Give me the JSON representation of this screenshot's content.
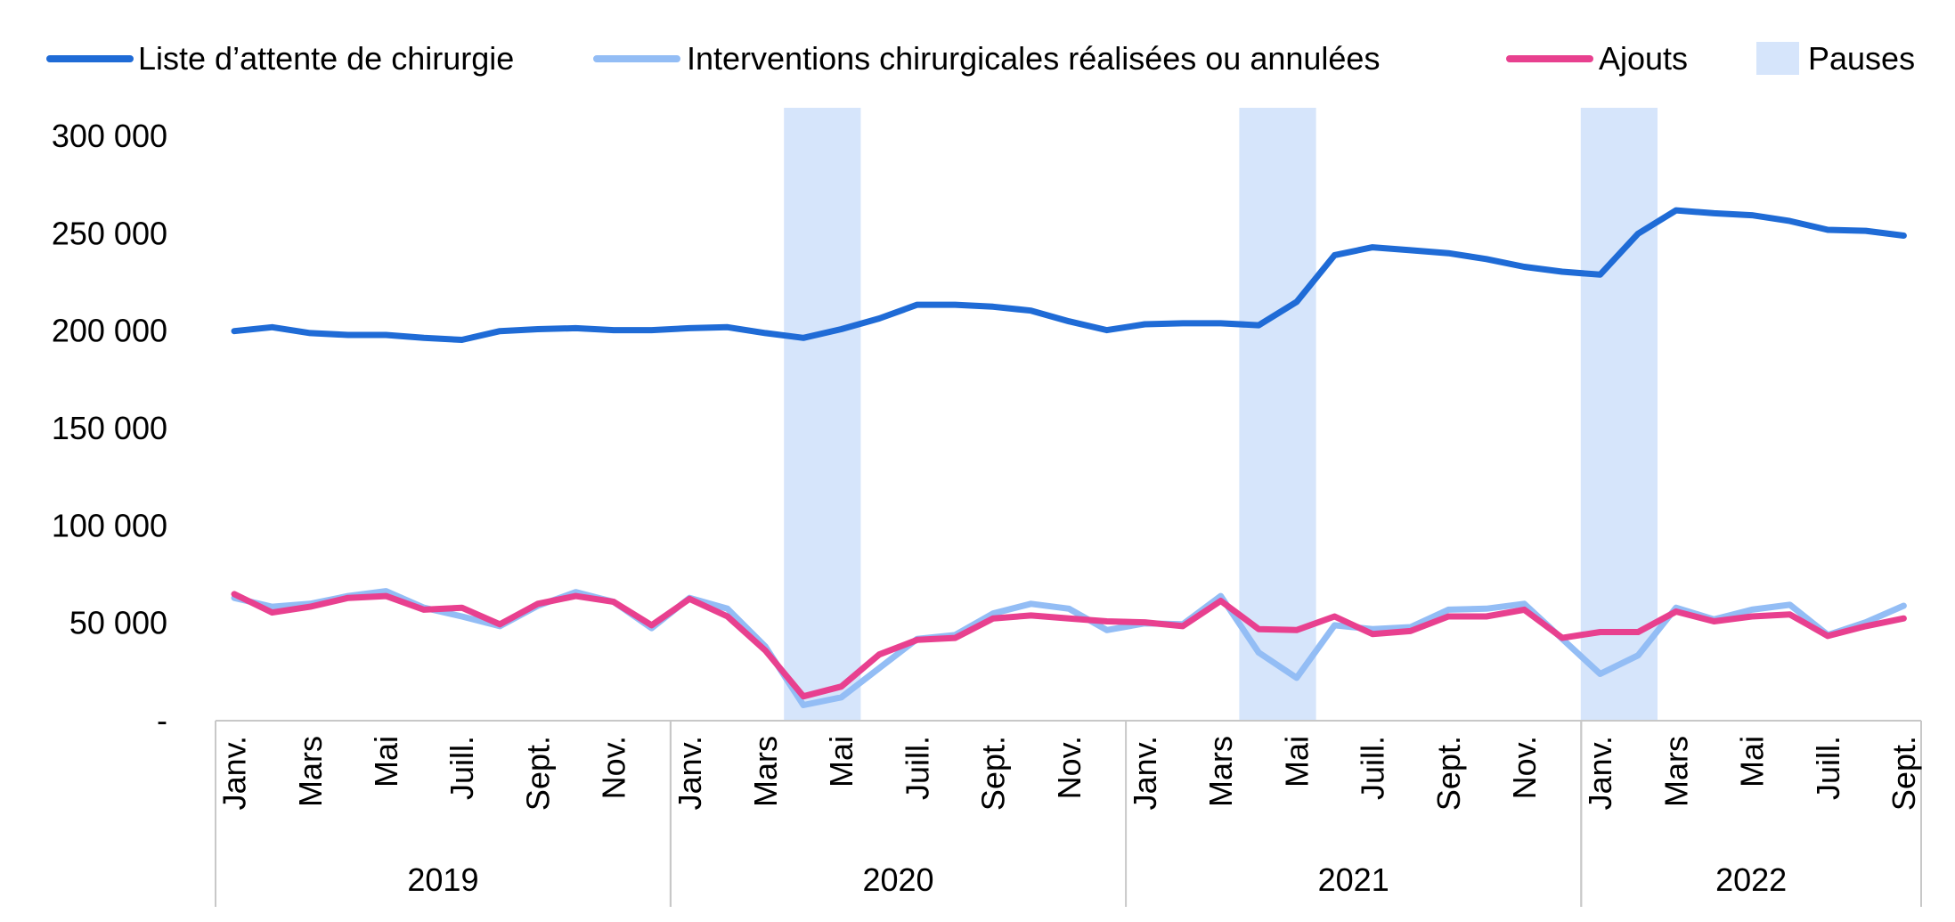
{
  "chart_data": {
    "type": "line",
    "legend_position": "top",
    "grid": false,
    "ylim": [
      0,
      300000
    ],
    "y_ticks": [
      {
        "value": 0,
        "label": "-"
      },
      {
        "value": 50000,
        "label": "50 000"
      },
      {
        "value": 100000,
        "label": "100 000"
      },
      {
        "value": 150000,
        "label": "150 000"
      },
      {
        "value": 200000,
        "label": "200 000"
      },
      {
        "value": 250000,
        "label": "250 000"
      },
      {
        "value": 300000,
        "label": "300 000"
      }
    ],
    "x": [
      "2019-01",
      "2019-02",
      "2019-03",
      "2019-04",
      "2019-05",
      "2019-06",
      "2019-07",
      "2019-08",
      "2019-09",
      "2019-10",
      "2019-11",
      "2019-12",
      "2020-01",
      "2020-02",
      "2020-03",
      "2020-04",
      "2020-05",
      "2020-06",
      "2020-07",
      "2020-08",
      "2020-09",
      "2020-10",
      "2020-11",
      "2020-12",
      "2021-01",
      "2021-02",
      "2021-03",
      "2021-04",
      "2021-05",
      "2021-06",
      "2021-07",
      "2021-08",
      "2021-09",
      "2021-10",
      "2021-11",
      "2021-12",
      "2022-01",
      "2022-02",
      "2022-03",
      "2022-04",
      "2022-05",
      "2022-06",
      "2022-07",
      "2022-08",
      "2022-09"
    ],
    "x_tick_labels": [
      "Janv.",
      "",
      "Mars",
      "",
      "Mai",
      "",
      "Juill.",
      "",
      "Sept.",
      "",
      "Nov.",
      "",
      "Janv.",
      "",
      "Mars",
      "",
      "Mai",
      "",
      "Juill.",
      "",
      "Sept.",
      "",
      "Nov.",
      "",
      "Janv.",
      "",
      "Mars",
      "",
      "Mai",
      "",
      "Juill.",
      "",
      "Sept.",
      "",
      "Nov.",
      "",
      "Janv.",
      "",
      "Mars",
      "",
      "Mai",
      "",
      "Juill.",
      "",
      "Sept."
    ],
    "years": [
      {
        "label": "2019",
        "start": 0,
        "end": 11
      },
      {
        "label": "2020",
        "start": 12,
        "end": 23
      },
      {
        "label": "2021",
        "start": 24,
        "end": 35
      },
      {
        "label": "2022",
        "start": 36,
        "end": 44
      }
    ],
    "pauses": [
      {
        "start": "2020-04",
        "end": "2020-05"
      },
      {
        "start": "2021-04",
        "end": "2021-05"
      },
      {
        "start": "2022-01",
        "end": "2022-02"
      }
    ],
    "series": [
      {
        "name": "Liste d’attente de chirurgie",
        "color": "#1f6bd6",
        "values": [
          200000,
          202000,
          199000,
          198000,
          198000,
          196500,
          195500,
          200000,
          201000,
          201500,
          200500,
          200500,
          201500,
          202000,
          199000,
          196500,
          201000,
          206500,
          213500,
          213500,
          212500,
          210500,
          205000,
          200500,
          203500,
          204000,
          204000,
          203000,
          215000,
          239000,
          243000,
          241500,
          240000,
          237000,
          233000,
          230500,
          229000,
          250000,
          262000,
          260500,
          259500,
          256500,
          252000,
          251500,
          249000
        ]
      },
      {
        "name": "Interventions chirurgicales réalisées ou annulées",
        "color": "#93bdf5",
        "values": [
          63000,
          58500,
          60000,
          64000,
          66500,
          58000,
          53500,
          48500,
          59000,
          66000,
          61000,
          47500,
          63000,
          57500,
          38000,
          8000,
          12000,
          27000,
          42000,
          44000,
          55000,
          60000,
          57500,
          46500,
          50000,
          49500,
          64000,
          35000,
          22000,
          49000,
          47000,
          48000,
          57000,
          57500,
          60000,
          42000,
          24000,
          33500,
          58000,
          52000,
          57000,
          59500,
          44000,
          50500,
          59000
        ]
      },
      {
        "name": "Ajouts",
        "color": "#e8408f",
        "values": [
          65000,
          55500,
          58500,
          63000,
          64000,
          57000,
          58000,
          49500,
          60000,
          64000,
          61000,
          49000,
          62500,
          53500,
          36000,
          12500,
          17500,
          34000,
          41500,
          42500,
          52500,
          54000,
          52500,
          51000,
          50500,
          48500,
          61500,
          47000,
          46500,
          53500,
          44500,
          46000,
          53500,
          53500,
          57000,
          42500,
          45500,
          45500,
          56000,
          51000,
          53500,
          54500,
          43500,
          48500,
          52500
        ]
      }
    ]
  },
  "legend": {
    "items": [
      {
        "label": "Liste d’attente de chirurgie",
        "color": "#1f6bd6",
        "kind": "line"
      },
      {
        "label": "Interventions chirurgicales réalisées ou annulées",
        "color": "#93bdf5",
        "kind": "line"
      },
      {
        "label": "Ajouts",
        "color": "#e8408f",
        "kind": "line"
      },
      {
        "label": "Pauses",
        "color": "#d6e5fb",
        "kind": "box"
      }
    ]
  }
}
